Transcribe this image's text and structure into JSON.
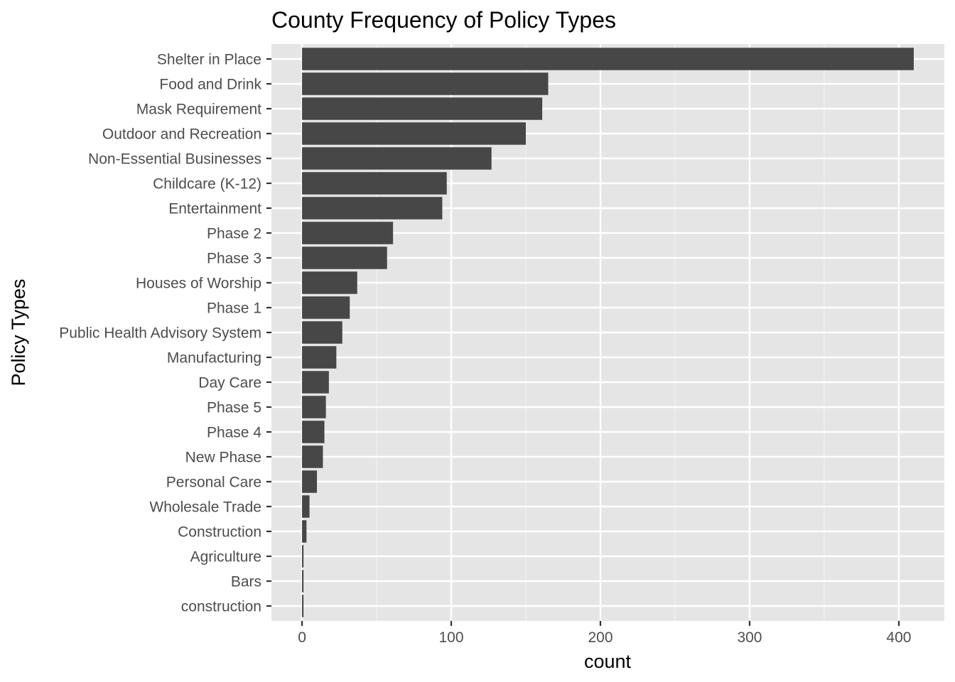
{
  "chart_data": {
    "type": "bar",
    "orientation": "horizontal",
    "title": "County Frequency of Policy Types",
    "xlabel": "count",
    "ylabel": "Policy Types",
    "categories": [
      "Shelter in Place",
      "Food and Drink",
      "Mask Requirement",
      "Outdoor and Recreation",
      "Non-Essential Businesses",
      "Childcare (K-12)",
      "Entertainment",
      "Phase 2",
      "Phase 3",
      "Houses of Worship",
      "Phase 1",
      "Public Health Advisory System",
      "Manufacturing",
      "Day Care",
      "Phase 5",
      "Phase 4",
      "New Phase",
      "Personal Care",
      "Wholesale Trade",
      "Construction",
      "Agriculture",
      "Bars",
      "construction"
    ],
    "values": [
      410,
      165,
      161,
      150,
      127,
      97,
      94,
      61,
      57,
      37,
      32,
      27,
      23,
      18,
      16,
      15,
      14,
      10,
      5,
      3,
      1,
      1,
      1
    ],
    "xlim": [
      -20.5,
      430.5
    ],
    "xticks": [
      0,
      100,
      200,
      300,
      400
    ],
    "xtick_labels": [
      "0",
      "100",
      "200",
      "300",
      "400"
    ],
    "grid": true,
    "colors": {
      "bar": "#474747",
      "panel_background": "#e5e5e5",
      "grid_major": "#ffffff",
      "grid_minor": "#f2f2f2",
      "tick_label": "#4d4d4d",
      "tick_mark": "#333333"
    }
  }
}
